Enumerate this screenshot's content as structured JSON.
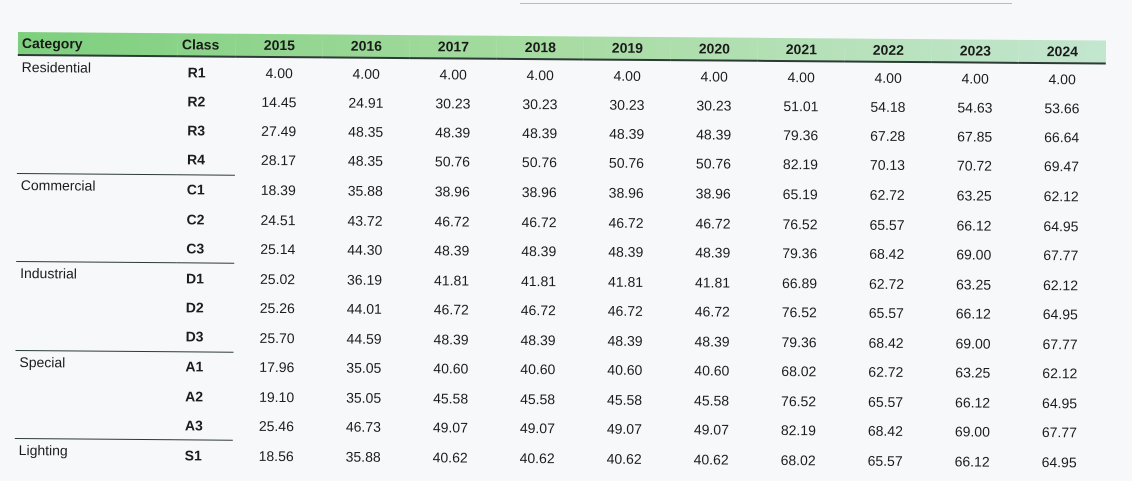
{
  "table": {
    "headers": [
      "Category",
      "Class",
      "2015",
      "2016",
      "2017",
      "2018",
      "2019",
      "2020",
      "2021",
      "2022",
      "2023",
      "2024"
    ],
    "rows": [
      {
        "category": "Residential",
        "class": "R1",
        "values": [
          "4.00",
          "4.00",
          "4.00",
          "4.00",
          "4.00",
          "4.00",
          "4.00",
          "4.00",
          "4.00",
          "4.00"
        ]
      },
      {
        "category": "",
        "class": "R2",
        "values": [
          "14.45",
          "24.91",
          "30.23",
          "30.23",
          "30.23",
          "30.23",
          "51.01",
          "54.18",
          "54.63",
          "53.66"
        ]
      },
      {
        "category": "",
        "class": "R3",
        "values": [
          "27.49",
          "48.35",
          "48.39",
          "48.39",
          "48.39",
          "48.39",
          "79.36",
          "67.28",
          "67.85",
          "66.64"
        ]
      },
      {
        "category": "",
        "class": "R4",
        "values": [
          "28.17",
          "48.35",
          "50.76",
          "50.76",
          "50.76",
          "50.76",
          "82.19",
          "70.13",
          "70.72",
          "69.47"
        ]
      },
      {
        "category": "Commercial",
        "class": "C1",
        "values": [
          "18.39",
          "35.88",
          "38.96",
          "38.96",
          "38.96",
          "38.96",
          "65.19",
          "62.72",
          "63.25",
          "62.12"
        ]
      },
      {
        "category": "",
        "class": "C2",
        "values": [
          "24.51",
          "43.72",
          "46.72",
          "46.72",
          "46.72",
          "46.72",
          "76.52",
          "65.57",
          "66.12",
          "64.95"
        ]
      },
      {
        "category": "",
        "class": "C3",
        "values": [
          "25.14",
          "44.30",
          "48.39",
          "48.39",
          "48.39",
          "48.39",
          "79.36",
          "68.42",
          "69.00",
          "67.77"
        ]
      },
      {
        "category": "Industrial",
        "class": "D1",
        "values": [
          "25.02",
          "36.19",
          "41.81",
          "41.81",
          "41.81",
          "41.81",
          "66.89",
          "62.72",
          "63.25",
          "62.12"
        ]
      },
      {
        "category": "",
        "class": "D2",
        "values": [
          "25.26",
          "44.01",
          "46.72",
          "46.72",
          "46.72",
          "46.72",
          "76.52",
          "65.57",
          "66.12",
          "64.95"
        ]
      },
      {
        "category": "",
        "class": "D3",
        "values": [
          "25.70",
          "44.59",
          "48.39",
          "48.39",
          "48.39",
          "48.39",
          "79.36",
          "68.42",
          "69.00",
          "67.77"
        ]
      },
      {
        "category": "Special",
        "class": "A1",
        "values": [
          "17.96",
          "35.05",
          "40.60",
          "40.60",
          "40.60",
          "40.60",
          "68.02",
          "62.72",
          "63.25",
          "62.12"
        ]
      },
      {
        "category": "",
        "class": "A2",
        "values": [
          "19.10",
          "35.05",
          "45.58",
          "45.58",
          "45.58",
          "45.58",
          "76.52",
          "65.57",
          "66.12",
          "64.95"
        ]
      },
      {
        "category": "",
        "class": "A3",
        "values": [
          "25.46",
          "46.73",
          "49.07",
          "49.07",
          "49.07",
          "49.07",
          "82.19",
          "68.42",
          "69.00",
          "67.77"
        ]
      },
      {
        "category": "Lighting",
        "class": "S1",
        "values": [
          "18.56",
          "35.88",
          "40.62",
          "40.62",
          "40.62",
          "40.62",
          "68.02",
          "65.57",
          "66.12",
          "64.95"
        ]
      }
    ]
  },
  "colors": {
    "header_start": "#7dcf7d",
    "header_end": "#c3e6cf",
    "rule": "#2d3b36",
    "background": "#f7f8fa"
  }
}
